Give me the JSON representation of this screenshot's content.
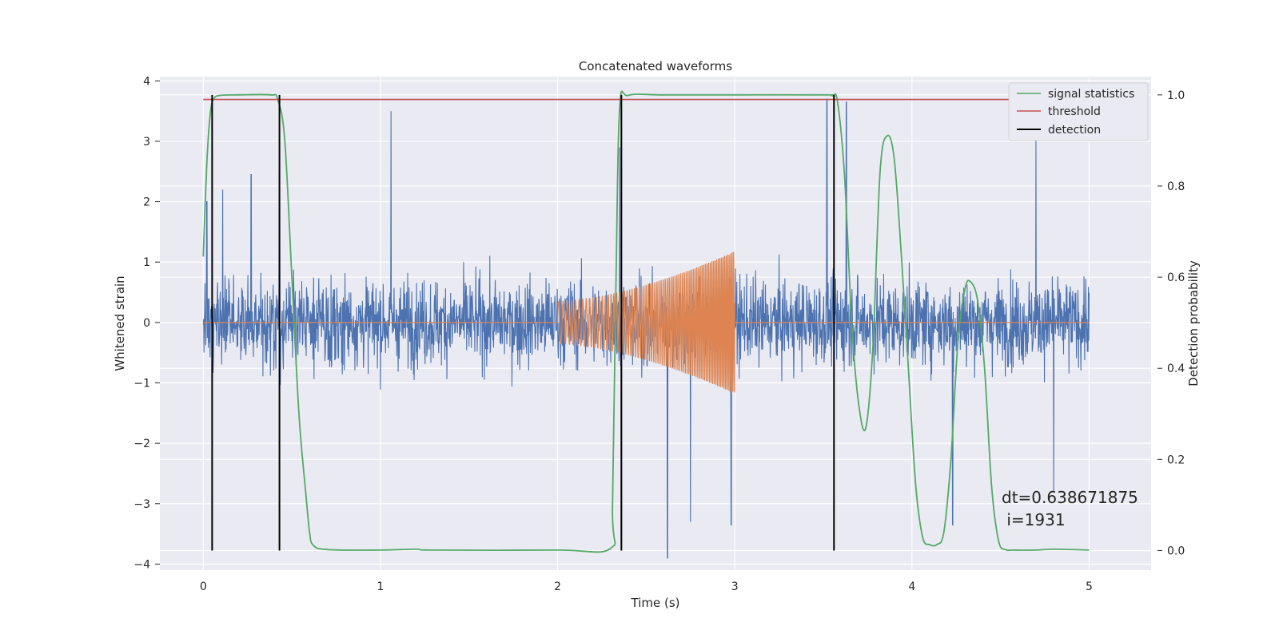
{
  "chart_data": {
    "type": "line",
    "title": "Concatenated waveforms",
    "xlabel": "Time (s)",
    "ylabel": "Whitened strain",
    "y2label": "Detection probability",
    "xlim": [
      -0.245,
      5.35
    ],
    "ylim": [
      -4.1,
      4.07
    ],
    "y2lim": [
      -0.043,
      1.04
    ],
    "xticks": [
      0,
      1,
      2,
      3,
      4,
      5
    ],
    "xtick_labels": [
      "0",
      "1",
      "2",
      "3",
      "4",
      "5"
    ],
    "yticks": [
      -4,
      -3,
      -2,
      -1,
      0,
      1,
      2,
      3,
      4
    ],
    "ytick_labels": [
      "−4",
      "−3",
      "−2",
      "−1",
      "0",
      "1",
      "2",
      "3",
      "4"
    ],
    "y2ticks": [
      0.0,
      0.2,
      0.4,
      0.6,
      0.8,
      1.0
    ],
    "y2tick_labels": [
      "0.0",
      "0.2",
      "0.4",
      "0.6",
      "0.8",
      "1.0"
    ],
    "grid": true,
    "legend_position": "top-right",
    "colors": {
      "noise": "#4c72b0",
      "injection": "#dd8452",
      "signal_statistics": "#55a868",
      "threshold": "#c44e52",
      "detection": "#000000",
      "axes_bg": "#eaeaf2",
      "grid": "#ffffff"
    },
    "series": [
      {
        "name": "",
        "axis": "left",
        "role": "noise",
        "description_free": true,
        "x_range": [
          0,
          5
        ],
        "std": 0.55,
        "peaks": [
          [
            0.02,
            2.0
          ],
          [
            0.11,
            2.2
          ],
          [
            0.27,
            2.45
          ],
          [
            0.43,
            2.45
          ],
          [
            1.06,
            3.5
          ],
          [
            2.35,
            2.9
          ],
          [
            2.62,
            -3.9
          ],
          [
            2.75,
            -3.3
          ],
          [
            2.98,
            -3.35
          ],
          [
            3.52,
            3.7
          ],
          [
            3.63,
            3.65
          ],
          [
            4.23,
            -3.35
          ],
          [
            4.7,
            3.05
          ],
          [
            4.8,
            -2.8
          ]
        ]
      },
      {
        "name": "",
        "axis": "left",
        "role": "injection",
        "x": [
          0,
          2.0,
          2.0,
          3.0,
          3.0,
          5.0
        ],
        "amplitude": [
          0,
          0,
          0.35,
          1.18,
          0,
          0
        ],
        "chirp_start_hz": 38,
        "chirp_end_hz": 120
      },
      {
        "name": "signal statistics",
        "axis": "right",
        "x": [
          0.0,
          0.02,
          0.04,
          0.06,
          0.1,
          0.2,
          0.38,
          0.42,
          0.46,
          0.5,
          0.54,
          0.58,
          0.6,
          0.62,
          0.7,
          1.0,
          1.2,
          1.3,
          2.0,
          2.3,
          2.31,
          2.33,
          2.35,
          2.4,
          2.6,
          3.0,
          3.5,
          3.55,
          3.58,
          3.62,
          3.66,
          3.7,
          3.74,
          3.78,
          3.82,
          3.86,
          3.9,
          3.94,
          3.98,
          4.02,
          4.06,
          4.1,
          4.14,
          4.18,
          4.22,
          4.26,
          4.3,
          4.33,
          4.37,
          4.41,
          4.45,
          4.49,
          4.53,
          4.57,
          4.7,
          4.8,
          5.0
        ],
        "values": [
          0.645,
          0.85,
          0.96,
          0.992,
          0.999,
          1.0,
          1.0,
          0.99,
          0.9,
          0.6,
          0.3,
          0.12,
          0.04,
          0.012,
          0.002,
          0.001,
          0.003,
          0.001,
          0.001,
          0.005,
          0.1,
          0.6,
          0.97,
          0.999,
          1.0,
          1.0,
          1.0,
          0.998,
          0.985,
          0.82,
          0.5,
          0.32,
          0.27,
          0.45,
          0.83,
          0.91,
          0.86,
          0.65,
          0.4,
          0.15,
          0.03,
          0.013,
          0.013,
          0.04,
          0.2,
          0.46,
          0.575,
          0.59,
          0.55,
          0.4,
          0.14,
          0.02,
          0.002,
          0.001,
          0.001,
          0.003,
          0.001
        ]
      },
      {
        "name": "threshold",
        "axis": "right",
        "x": [
          0,
          5
        ],
        "values": [
          0.99,
          0.99
        ]
      },
      {
        "name": "detection",
        "axis": "right",
        "x": [
          0.05,
          0.43,
          2.36,
          3.56
        ],
        "range": [
          0.0,
          1.0
        ]
      }
    ],
    "annotation": "dt=0.638671875\n i=1931",
    "annotation_lines": [
      "dt=0.638671875",
      " i=1931"
    ]
  }
}
